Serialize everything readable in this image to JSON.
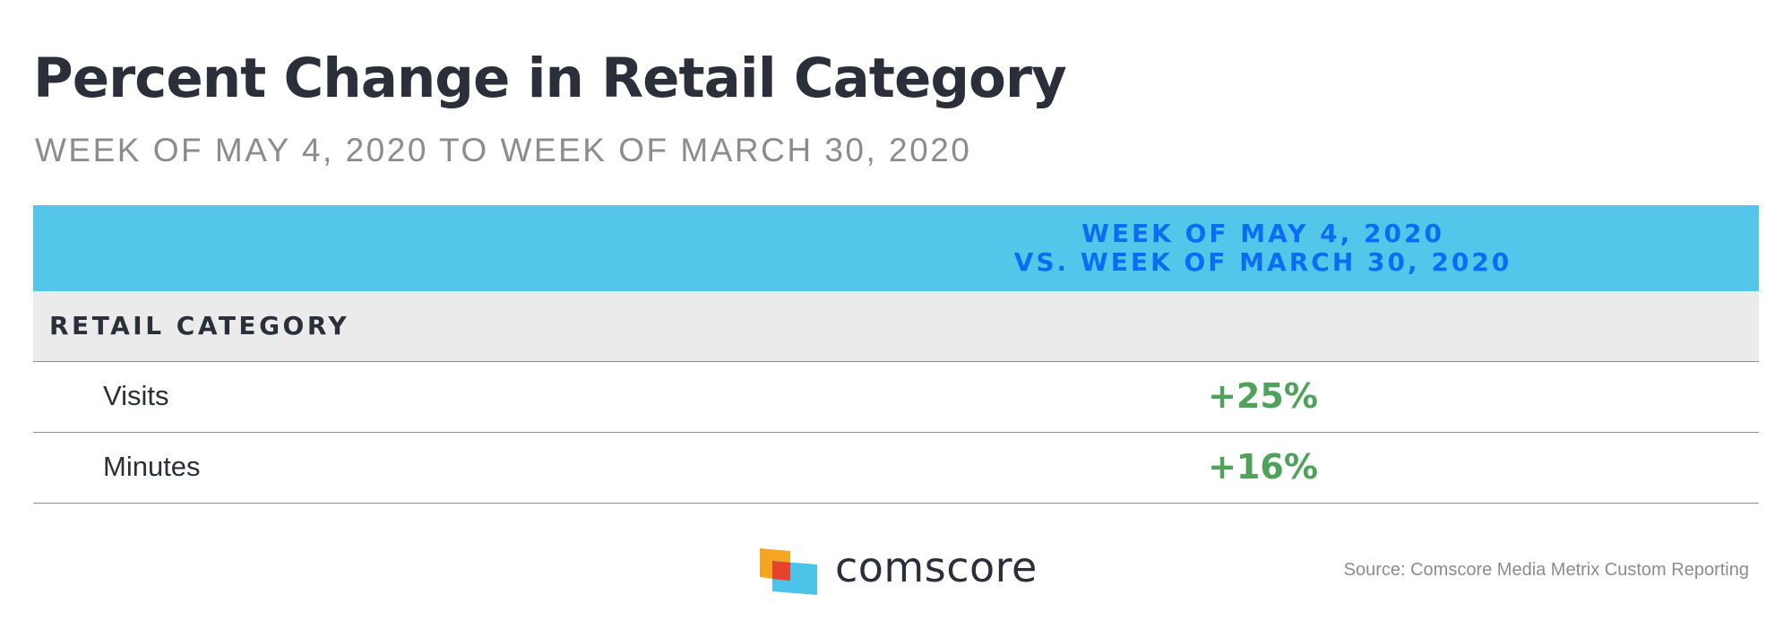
{
  "title": "Percent Change in Retail Category",
  "subtitle": "WEEK OF MAY 4, 2020 TO WEEK OF MARCH 30, 2020",
  "chart_data": {
    "type": "table",
    "column_header": [
      "WEEK OF MAY 4, 2020",
      "VS. WEEK OF MARCH 30, 2020"
    ],
    "category": "RETAIL CATEGORY",
    "rows": [
      {
        "metric": "Visits",
        "value": "+25%"
      },
      {
        "metric": "Minutes",
        "value": "+16%"
      }
    ]
  },
  "brand": "comscore",
  "source": "Source: Comscore Media Metrix Custom Reporting",
  "colors": {
    "header_bg": "#53c6e9",
    "header_text": "#0a6ef5",
    "positive_value": "#4ea25a",
    "category_bg": "#ebebeb",
    "title_text": "#2b2f3a",
    "logo_orange": "#f4a522",
    "logo_red": "#e8412c",
    "logo_blue": "#4cc3e8"
  },
  "icons": {
    "logo": "comscore-logo-icon"
  }
}
